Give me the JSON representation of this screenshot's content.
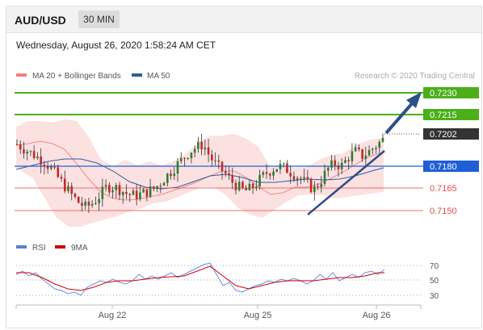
{
  "header": {
    "symbol": "AUD/USD",
    "timeframe": "30 MIN"
  },
  "datetime": "Wednesday, August 26, 2020 1:58:24 AM CET",
  "legend": {
    "ma20": {
      "label": "MA 20 + Bollinger Bands",
      "color": "#f08080"
    },
    "ma50": {
      "label": "MA 50",
      "color": "#2c5f9e"
    }
  },
  "credit": "Research © 2020 Trading Central",
  "oscillator_legend": {
    "rsi": {
      "label": "RSI",
      "color": "#5b7fd6"
    },
    "ma9": {
      "label": "9MA",
      "color": "#cc0000"
    }
  },
  "chart_data": {
    "type": "candlestick",
    "price_levels": [
      {
        "value": "0.7230",
        "kind": "resistance",
        "color": "#4caf1a"
      },
      {
        "value": "0.7215",
        "kind": "resistance",
        "color": "#4caf1a"
      },
      {
        "value": "0.7202",
        "kind": "current",
        "color": "#333333"
      },
      {
        "value": "0.7180",
        "kind": "pivot",
        "color": "#1f5fd6"
      },
      {
        "value": "0.7165",
        "kind": "support",
        "color": "#e84c4c"
      },
      {
        "value": "0.7150",
        "kind": "support",
        "color": "#e84c4c"
      }
    ],
    "x_tick_labels": [
      "Aug 22",
      "Aug 25",
      "Aug 26"
    ],
    "rsi_levels": [
      "70",
      "50",
      "30"
    ],
    "close_series": [
      0.7195,
      0.7192,
      0.7189,
      0.7186,
      0.7183,
      0.7178,
      0.7172,
      0.7166,
      0.716,
      0.7155,
      0.7152,
      0.7155,
      0.716,
      0.7166,
      0.7166,
      0.7164,
      0.7161,
      0.716,
      0.7161,
      0.7163,
      0.7165,
      0.717,
      0.7175,
      0.718,
      0.7185,
      0.719,
      0.7193,
      0.7195,
      0.7186,
      0.718,
      0.7176,
      0.717,
      0.7166,
      0.7163,
      0.7165,
      0.717,
      0.7175,
      0.7178,
      0.718,
      0.7178,
      0.7175,
      0.7172,
      0.7168,
      0.7164,
      0.717,
      0.7178,
      0.7182,
      0.718,
      0.7186,
      0.719,
      0.7187,
      0.719,
      0.7194,
      0.7198
    ],
    "indicator_lines": [
      "MA 20",
      "Bollinger Bands",
      "MA 50",
      "Trend line",
      "Target arrow"
    ]
  }
}
